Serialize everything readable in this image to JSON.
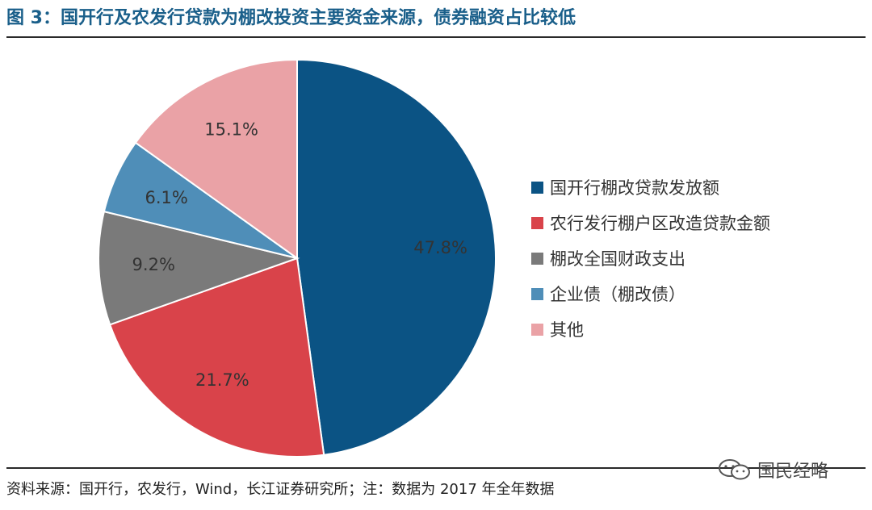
{
  "title": "图 3：国开行及农发行贷款为棚改投资主要资金来源，债券融资占比较低",
  "source": "资料来源：国开行，农发行，Wind，长江证券研究所；注：数据为 2017 年全年数据",
  "watermark": "国民经略",
  "chart_data": {
    "type": "pie",
    "start_angle_deg": 0,
    "direction": "clockwise",
    "legend_position": "right",
    "slices": [
      {
        "label": "国开行棚改贷款发放额",
        "value": 47.8,
        "display": "47.8%",
        "color": "#0b5384"
      },
      {
        "label": "农行发行棚户区改造贷款金额",
        "value": 21.7,
        "display": "21.7%",
        "color": "#d9434a"
      },
      {
        "label": "棚改全国财政支出",
        "value": 9.2,
        "display": "9.2%",
        "color": "#7a7a7a"
      },
      {
        "label": "企业债（棚改债）",
        "value": 6.1,
        "display": "6.1%",
        "color": "#4f8eb8"
      },
      {
        "label": "其他",
        "value": 15.1,
        "display": "15.1%",
        "color": "#eaa2a6"
      }
    ]
  }
}
